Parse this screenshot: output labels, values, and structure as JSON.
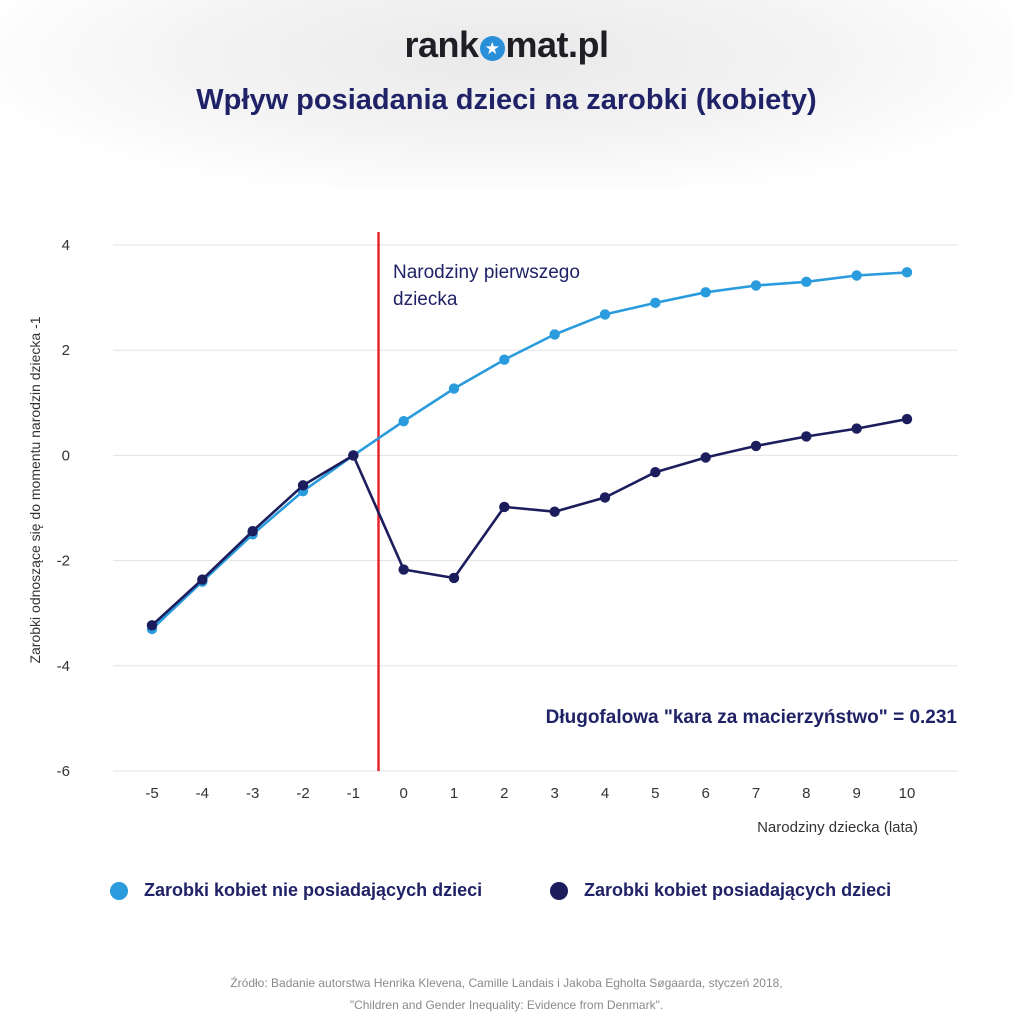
{
  "header": {
    "logo_before": "rank",
    "logo_icon": "star-icon",
    "logo_after": "mat.pl",
    "title": "Wpływ posiadania dzieci na zarobki (kobiety)"
  },
  "colors": {
    "no_children": "#2a9bdc",
    "with_children": "#1b1d5c",
    "birth_line": "#e8262c",
    "title": "#1f2266"
  },
  "chart_data": {
    "type": "line",
    "title": "Wpływ posiadania dzieci na zarobki (kobiety)",
    "xlabel": "Narodziny dziecka (lata)",
    "ylabel": "Zarobki odnoszące się do momentu narodzin dziecka -1",
    "x": [
      -5,
      -4,
      -3,
      -2,
      -1,
      0,
      1,
      2,
      3,
      4,
      5,
      6,
      7,
      8,
      9,
      10
    ],
    "x_ticks": [
      "-5",
      "-4",
      "-3",
      "-2",
      "-1",
      "0",
      "1",
      "2",
      "3",
      "4",
      "5",
      "6",
      "7",
      "8",
      "9",
      "10"
    ],
    "y_ticks": [
      4,
      2,
      0,
      -2,
      -4,
      -6
    ],
    "y_tick_labels": [
      "4",
      "2",
      "0",
      "-2",
      "-4",
      "-6"
    ],
    "ylim": [
      -6,
      4
    ],
    "grid": "horizontal",
    "legend_position": "bottom",
    "series": [
      {
        "name": "Zarobki kobiet nie posiadających dzieci",
        "color": "#2a9bdc",
        "values": [
          -3.3,
          -2.4,
          -1.5,
          -0.68,
          0.0,
          0.65,
          1.27,
          1.82,
          2.3,
          2.68,
          2.9,
          3.1,
          3.23,
          3.3,
          3.42,
          3.48
        ]
      },
      {
        "name": "Zarobki kobiet posiadających dzieci",
        "color": "#1b1d5c",
        "values": [
          -3.23,
          -2.36,
          -1.44,
          -0.57,
          0.0,
          -2.17,
          -2.33,
          -0.98,
          -1.07,
          -0.8,
          -0.32,
          -0.04,
          0.18,
          0.36,
          0.51,
          0.69
        ]
      }
    ],
    "annotations": {
      "birth_event_x": -0.5,
      "birth_label_line1": "Narodziny pierwszego",
      "birth_label_line2": "dziecka",
      "penalty_text": "Długofalowa \"kara za macierzyństwo\" = 0.231"
    }
  },
  "legend": {
    "items": [
      {
        "label": "Zarobki kobiet nie posiadających dzieci",
        "color": "#2a9bdc"
      },
      {
        "label": "Zarobki kobiet posiadających dzieci",
        "color": "#1b1d5c"
      }
    ]
  },
  "source": {
    "line1": "Źródło: Badanie autorstwa Henrika Klevena, Camille Landais i Jakoba Egholta Søgaarda, styczeń 2018,",
    "line2": "\"Children and Gender Inequality: Evidence from Denmark\"."
  }
}
